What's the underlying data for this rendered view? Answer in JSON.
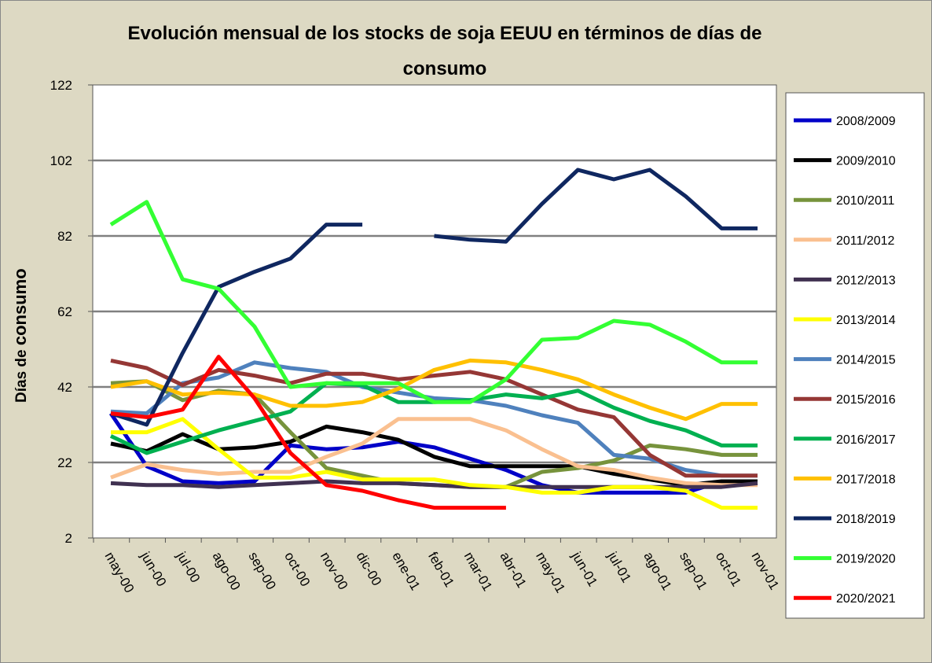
{
  "chart_data": {
    "type": "line",
    "title": [
      "Evolución mensual de los stocks de soja EEUU en términos de días de",
      "consumo"
    ],
    "xlabel": "",
    "ylabel": [
      "Días de ",
      "consumo"
    ],
    "ylim": [
      2,
      122
    ],
    "yticks": [
      2,
      22,
      42,
      62,
      82,
      102,
      122
    ],
    "grid": true,
    "legend_position": "right",
    "categories": [
      "may-00",
      "jun-00",
      "jul-00",
      "ago-00",
      "sep-00",
      "oct-00",
      "nov-00",
      "dic-00",
      "ene-01",
      "feb-01",
      "mar-01",
      "abr-01",
      "may-01",
      "jun-01",
      "jul-01",
      "ago-01",
      "sep-01",
      "oct-01",
      "nov-01"
    ],
    "series": [
      {
        "name": "2008/2009",
        "color": "#0000c8",
        "values": [
          35,
          21,
          17,
          16.5,
          17,
          26.5,
          25.5,
          26,
          27.5,
          26,
          23,
          20,
          16,
          14,
          14,
          14,
          14,
          17,
          17
        ]
      },
      {
        "name": "2009/2010",
        "color": "#000000",
        "values": [
          27,
          25,
          29.5,
          25.5,
          26,
          27.5,
          31.5,
          30,
          28,
          23.5,
          21,
          21,
          21,
          21,
          19,
          17.5,
          16,
          17,
          17
        ]
      },
      {
        "name": "2010/2011",
        "color": "#77933c",
        "values": [
          43,
          43.5,
          38.5,
          41,
          40,
          30,
          20.5,
          18.5,
          16.5,
          16,
          15.5,
          15.5,
          19.5,
          20.5,
          22.5,
          26.5,
          25.5,
          24,
          24
        ]
      },
      {
        "name": "2011/2012",
        "color": "#fac090",
        "values": [
          18,
          21.5,
          20,
          19,
          19.5,
          19.5,
          23.5,
          27,
          33.5,
          33.5,
          33.5,
          30.5,
          25.5,
          21,
          20,
          18,
          16.5,
          16,
          16
        ]
      },
      {
        "name": "2012/2013",
        "color": "#403151",
        "values": [
          16.5,
          16,
          16,
          15.5,
          16,
          16.5,
          17,
          16.5,
          16.5,
          16,
          15.5,
          15.5,
          15.5,
          15.5,
          15.5,
          15.5,
          15.5,
          15.5,
          16.5
        ]
      },
      {
        "name": "2013/2014",
        "color": "#ffff00",
        "values": [
          30,
          30,
          33.5,
          25.5,
          18,
          18,
          19.5,
          17.5,
          17.5,
          17.5,
          16,
          15.5,
          14,
          14,
          15.5,
          15.5,
          14.5,
          10,
          10
        ]
      },
      {
        "name": "2014/2015",
        "color": "#4f81bd",
        "values": [
          35.5,
          35,
          43,
          44.5,
          48.5,
          47,
          46,
          42,
          40.5,
          39,
          38.5,
          37,
          34.5,
          32.5,
          24,
          23,
          20,
          18.5,
          18.5
        ]
      },
      {
        "name": "2015/2016",
        "color": "#953735",
        "values": [
          49,
          47,
          42.5,
          46.5,
          45,
          43,
          45.5,
          45.5,
          44,
          45,
          46,
          44,
          40,
          36,
          34,
          24,
          18.5,
          18.5,
          18.5
        ]
      },
      {
        "name": "2016/2017",
        "color": "#00b050",
        "values": [
          29,
          24.5,
          27.5,
          30.5,
          33,
          35.5,
          43,
          42.5,
          38,
          38,
          38.5,
          40,
          39,
          41,
          36.5,
          33,
          30.5,
          26.5,
          26.5
        ]
      },
      {
        "name": "2017/2018",
        "color": "#ffc000",
        "values": [
          42,
          43.5,
          40,
          40.5,
          40,
          37,
          37,
          38,
          41.5,
          46.5,
          49,
          48.5,
          46.5,
          44,
          40,
          36.5,
          33.5,
          37.5,
          37.5
        ]
      },
      {
        "name": "2018/2019",
        "color": "#0f2760",
        "values": [
          35,
          32,
          51,
          68.5,
          72.5,
          76,
          85,
          85,
          null,
          82,
          81,
          80.5,
          90.5,
          99.5,
          97,
          99.5,
          92.5,
          84,
          84
        ]
      },
      {
        "name": "2019/2020",
        "color": "#33ff33",
        "values": [
          85,
          91,
          70.5,
          68,
          58,
          42,
          43,
          43,
          43,
          38,
          38,
          44,
          54.5,
          55,
          59.5,
          58.5,
          54,
          48.5,
          48.5
        ]
      },
      {
        "name": "2020/2021",
        "color": "#ff0000",
        "values": [
          35,
          34,
          36,
          50,
          39,
          24.5,
          16,
          14.5,
          12,
          10,
          10,
          10,
          null,
          null,
          null,
          null,
          null,
          null,
          null
        ]
      }
    ]
  }
}
